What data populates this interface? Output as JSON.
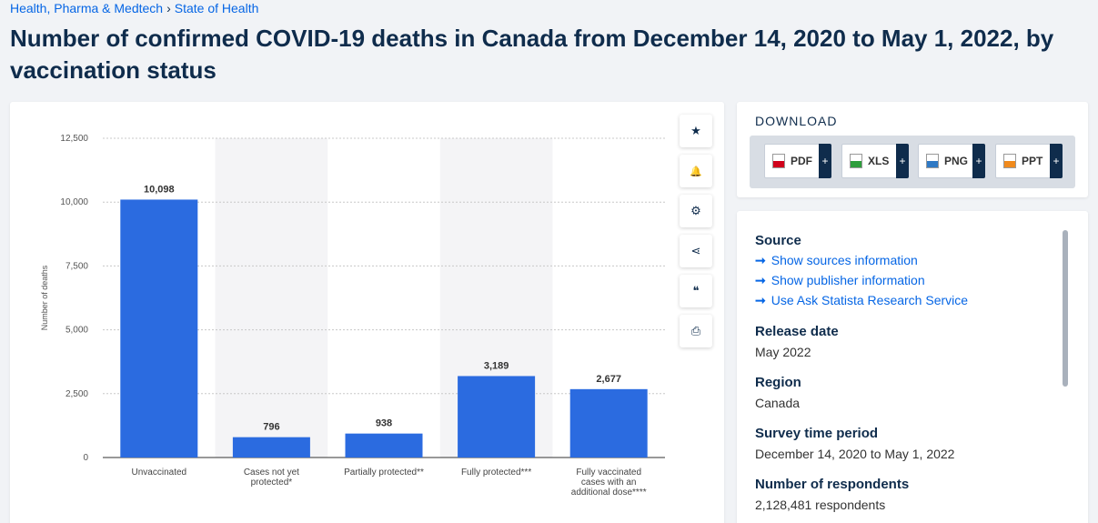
{
  "breadcrumb": {
    "item1": "Health, Pharma & Medtech",
    "sep": "›",
    "item2": "State of Health"
  },
  "title": "Number of confirmed COVID-19 deaths in Canada from December 14, 2020 to May 1, 2022, by vaccination status",
  "toolbar": {
    "icons": [
      "star-icon",
      "bell-icon",
      "gear-icon",
      "share-icon",
      "quote-icon",
      "print-icon"
    ],
    "glyphs": [
      "★",
      "🔔",
      "⚙",
      "⋖",
      "❝",
      "⎙"
    ]
  },
  "download": {
    "title": "DOWNLOAD",
    "buttons": [
      {
        "label": "PDF",
        "color": "#d0021b"
      },
      {
        "label": "XLS",
        "color": "#2e9e3c"
      },
      {
        "label": "PNG",
        "color": "#2f79c4"
      },
      {
        "label": "PPT",
        "color": "#f08a1c"
      }
    ],
    "plus": "+"
  },
  "info": {
    "source_heading": "Source",
    "links": [
      "Show sources information",
      "Show publisher information",
      "Use Ask Statista Research Service"
    ],
    "link_arrow": "➞",
    "release_heading": "Release date",
    "release_value": "May 2022",
    "region_heading": "Region",
    "region_value": "Canada",
    "period_heading": "Survey time period",
    "period_value": "December 14, 2020 to May 1, 2022",
    "respondents_heading": "Number of respondents",
    "respondents_value": "2,128,481 respondents"
  },
  "chart_data": {
    "type": "bar",
    "categories": [
      [
        "Unvaccinated"
      ],
      [
        "Cases not yet",
        "protected*"
      ],
      [
        "Partially protected**"
      ],
      [
        "Fully protected***"
      ],
      [
        "Fully vaccinated",
        "cases with an",
        "additional dose****"
      ]
    ],
    "values": [
      10098,
      796,
      938,
      3189,
      2677
    ],
    "value_labels": [
      "10,098",
      "796",
      "938",
      "3,189",
      "2,677"
    ],
    "ylabel": "Number of deaths",
    "ylim": [
      0,
      12500
    ],
    "yticks": [
      0,
      2500,
      5000,
      7500,
      10000,
      12500
    ],
    "ytick_labels": [
      "0",
      "2,500",
      "5,000",
      "7,500",
      "10,000",
      "12,500"
    ],
    "bar_color": "#2b6be0",
    "grid": true
  }
}
